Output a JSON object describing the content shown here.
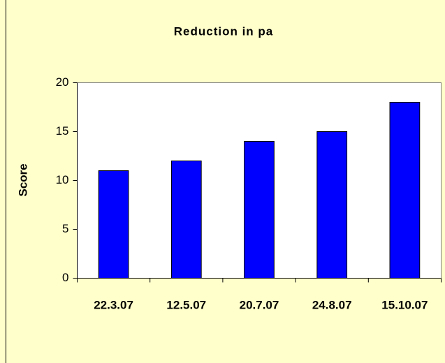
{
  "chart_data": {
    "type": "bar",
    "title": "Reduction in pa",
    "ylabel": "Score",
    "categories": [
      "22.3.07",
      "12.5.07",
      "20.7.07",
      "24.8.07",
      "15.10.07"
    ],
    "values": [
      11,
      12,
      14,
      15,
      18
    ],
    "color": "#0000ff",
    "ylim": [
      0,
      20
    ],
    "yticks": [
      0,
      5,
      10,
      15,
      20
    ],
    "grid": false
  }
}
